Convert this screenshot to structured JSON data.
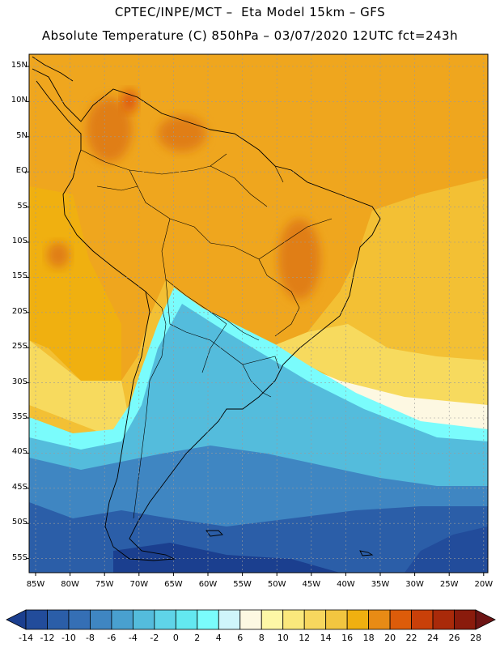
{
  "title_line1": "CPTEC/INPE/MCT –  Eta Model 15km – GFS",
  "title_line2": "Absolute Temperature (C) 850hPa – 03/07/2020 12UTC fct=243h",
  "lat_labels": [
    "15N",
    "10N",
    "5N",
    "EQ",
    "5S",
    "10S",
    "15S",
    "20S",
    "25S",
    "30S",
    "35S",
    "40S",
    "45S",
    "50S",
    "55S"
  ],
  "lon_labels": [
    "85W",
    "80W",
    "75W",
    "70W",
    "65W",
    "60W",
    "55W",
    "50W",
    "45W",
    "40W",
    "35W",
    "30W",
    "25W",
    "20W"
  ],
  "colorbar": {
    "levels": [
      "-14",
      "-12",
      "-10",
      "-8",
      "-6",
      "-4",
      "-2",
      "0",
      "2",
      "4",
      "6",
      "8",
      "10",
      "12",
      "14",
      "16",
      "18",
      "20",
      "22",
      "24",
      "26",
      "28"
    ],
    "colors": [
      "#1b3f8f",
      "#224c9b",
      "#2b5ea8",
      "#356fb5",
      "#3f86c2",
      "#49a0cf",
      "#54bcdc",
      "#5fd4e8",
      "#63e8f0",
      "#7afcfc",
      "#cff5fb",
      "#fdf8e2",
      "#fdf7a6",
      "#fae87c",
      "#f7d75e",
      "#f2c640",
      "#f0b010",
      "#e88b15",
      "#dd5c0a",
      "#c94009",
      "#a92a0a",
      "#8a1b0c",
      "#6d1414"
    ]
  },
  "map_colors": {
    "land_tropical": "#efa61e",
    "land_hot": "#e07e17",
    "ocean_warm": "#f3c034",
    "ocean_mild": "#f7da5e",
    "cold_light": "#7afcfc",
    "cold_mid": "#49c9e6",
    "cold_deep": "#3a8fc8",
    "cold_deepest": "#2456a5",
    "border": "#000000",
    "grid": "#9a9a9a"
  }
}
